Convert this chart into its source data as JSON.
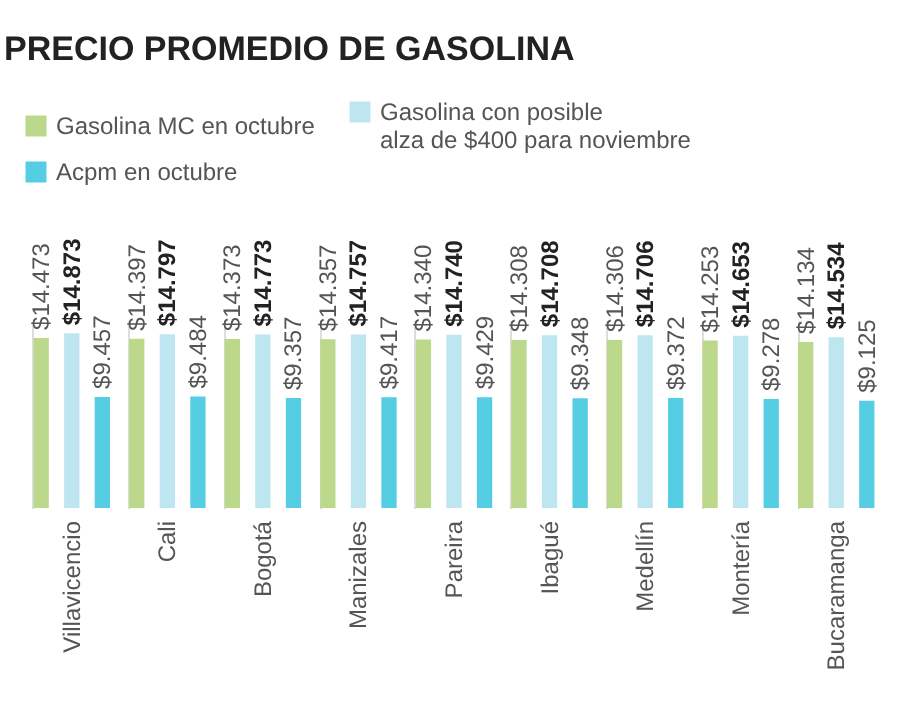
{
  "chart_data": {
    "type": "bar",
    "title": "PRECIO PROMEDIO DE GASOLINA",
    "categories": [
      "Villavicencio",
      "Cali",
      "Bogotá",
      "Manizales",
      "Pareira",
      "Ibagué",
      "Medellín",
      "Montería",
      "Bucaramanga"
    ],
    "series": [
      {
        "name": "Gasolina MC en octubre",
        "color": "#bcd88a",
        "values": [
          14473,
          14397,
          14373,
          14357,
          14340,
          14308,
          14306,
          14253,
          14134
        ],
        "value_labels": [
          "$14.473",
          "$14.397",
          "$14.373",
          "$14.357",
          "$14.340",
          "$14.308",
          "$14.306",
          "$14.253",
          "$14.134"
        ]
      },
      {
        "name": "Gasolina con posible alza de $400 para noviembre",
        "color": "#bde6f0",
        "values": [
          14873,
          14797,
          14773,
          14757,
          14740,
          14708,
          14706,
          14653,
          14534
        ],
        "value_labels": [
          "$14.873",
          "$14.797",
          "$14.773",
          "$14.757",
          "$14.740",
          "$14.708",
          "$14.706",
          "$14.653",
          "$14.534"
        ]
      },
      {
        "name": "Acpm en octubre",
        "color": "#55cde3",
        "values": [
          9457,
          9484,
          9357,
          9417,
          9429,
          9348,
          9372,
          9278,
          9125
        ],
        "value_labels": [
          "$9.457",
          "$9.484",
          "$9.357",
          "$9.417",
          "$9.429",
          "$9.348",
          "$9.372",
          "$9.278",
          "$9.125"
        ]
      }
    ],
    "legend": "top left",
    "grid": "x"
  }
}
